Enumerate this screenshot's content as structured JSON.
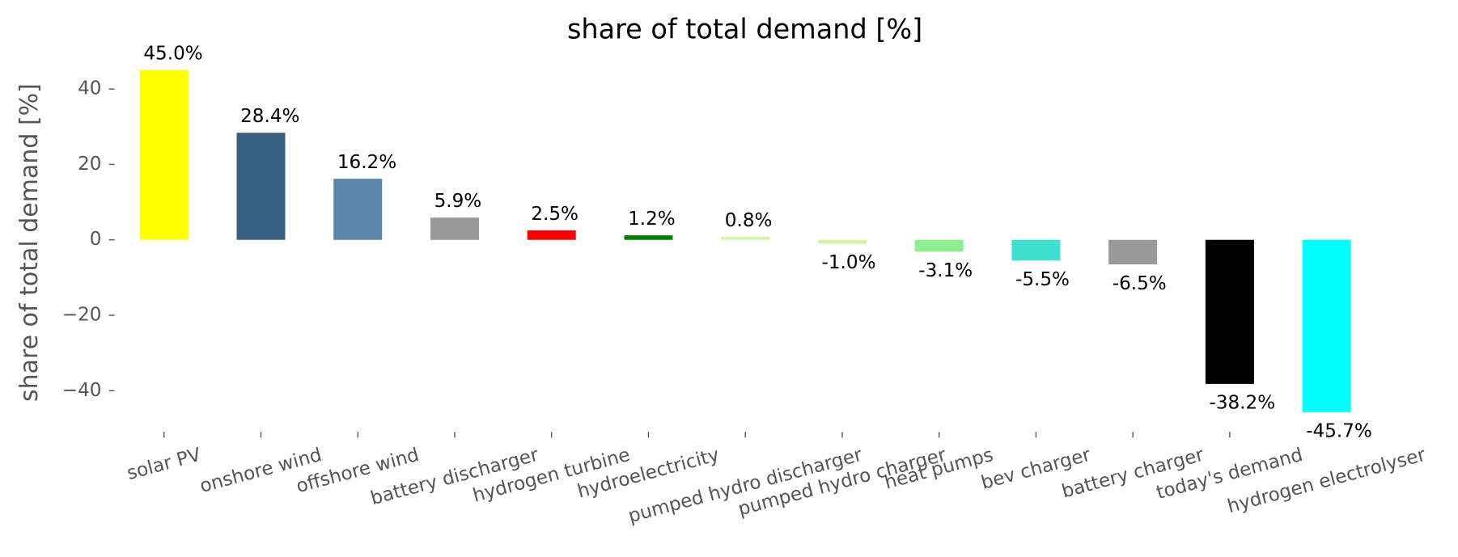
{
  "chart_data": {
    "type": "bar",
    "title": "share of total demand [%]",
    "y_label": "share of total demand [%]",
    "categories": [
      "solar PV",
      "onshore wind",
      "offshore wind",
      "battery discharger",
      "hydrogen turbine",
      "hydroelectricity",
      "pumped hydro discharger",
      "pumped hydro charger",
      "heat pumps",
      "bev charger",
      "battery charger",
      "today's demand",
      "hydrogen electrolyser"
    ],
    "values": [
      45.0,
      28.4,
      16.2,
      5.9,
      2.5,
      1.2,
      0.8,
      -1.0,
      -3.1,
      -5.5,
      -6.5,
      -38.2,
      -45.7
    ],
    "value_labels": [
      "45.0%",
      "28.4%",
      "16.2%",
      "5.9%",
      "2.5%",
      "1.2%",
      "0.8%",
      "-1.0%",
      "-3.1%",
      "-5.5%",
      "-6.5%",
      "-38.2%",
      "-45.7%"
    ],
    "colors": [
      "#ffff00",
      "#3b6182",
      "#5b84a6",
      "#999999",
      "#ff0000",
      "#008000",
      "#d4f5a0",
      "#d4f5a0",
      "#90ee90",
      "#40e0d0",
      "#999999",
      "#000000",
      "#00ffff"
    ],
    "ylim": [
      -50.7,
      50
    ],
    "yticks": [
      {
        "value": -40,
        "label": "−40"
      },
      {
        "value": -20,
        "label": "−20"
      },
      0,
      20,
      40
    ],
    "grid": false
  }
}
